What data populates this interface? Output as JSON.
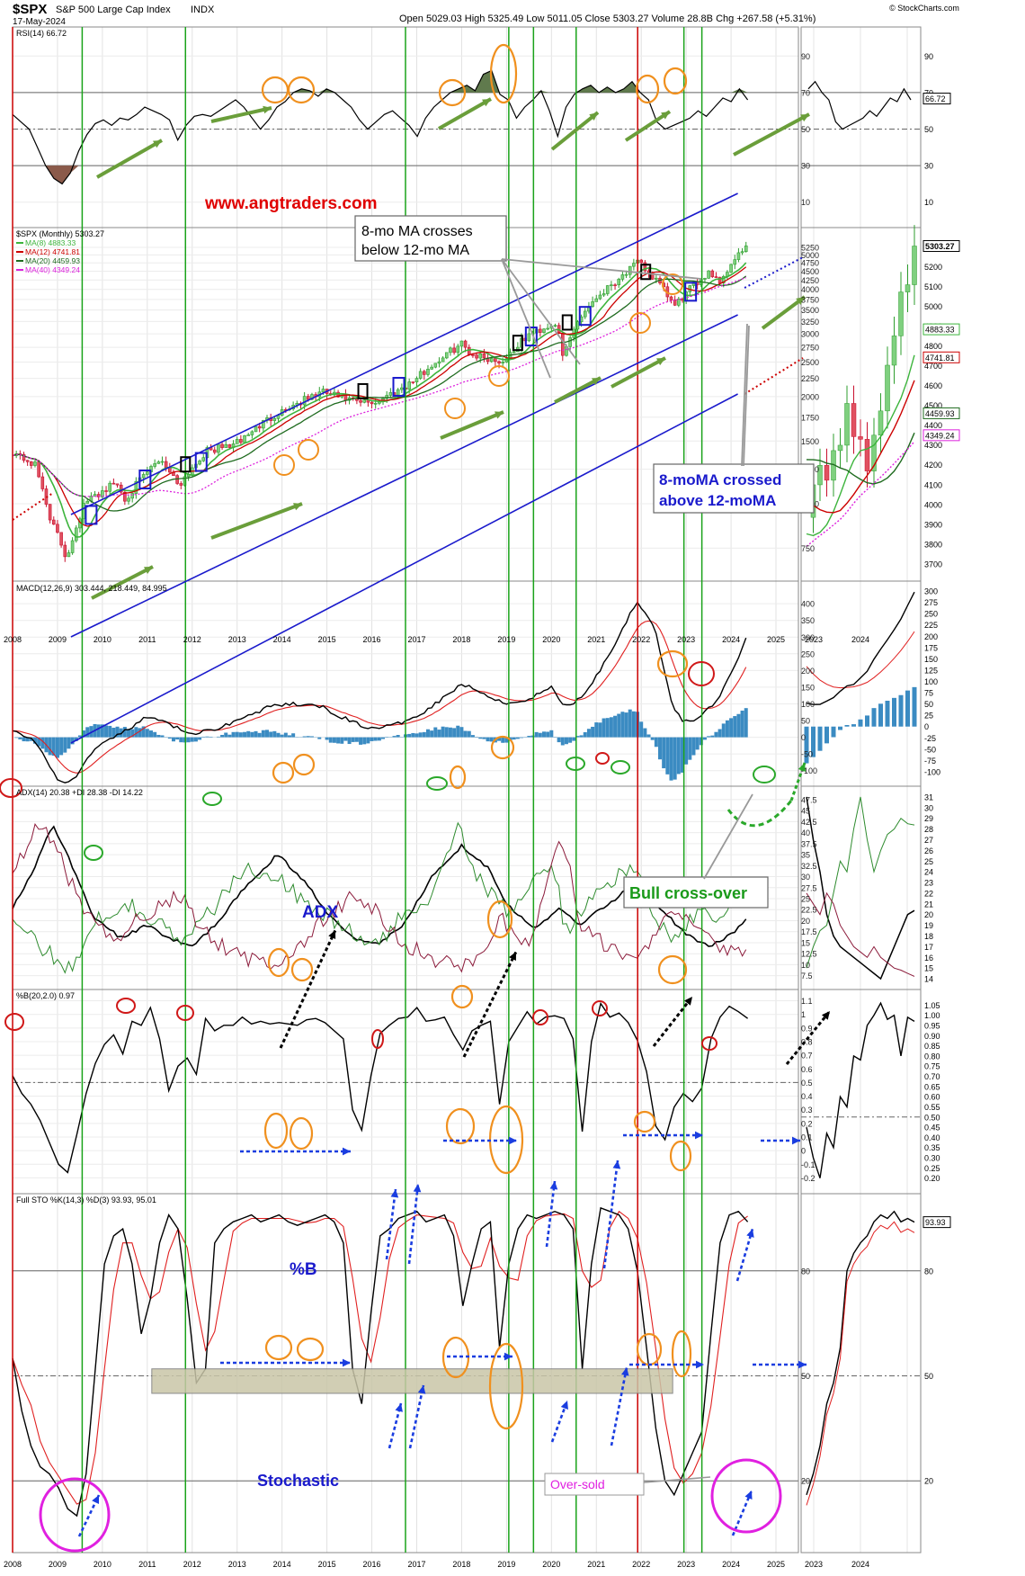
{
  "header": {
    "symbol": "$SPX",
    "name": "S&P 500 Large Cap Index",
    "exchange": "INDX",
    "date": "17-May-2024",
    "ohlc": "Open 5029.03  High 5325.49  Low 5011.05  Close 5303.27  Volume 28.8B  Chg +267.58 (+5.31%)",
    "credit": "© StockCharts.com"
  },
  "annotations": {
    "website": "www.angtraders.com",
    "ma_cross_below": "8-mo MA crosses below 12-mo MA",
    "ma_cross_above": "8-moMA crossed above 12-moMA",
    "bull_cross": "Bull cross-over",
    "adx_title": "ADX",
    "pctb_title": "%B",
    "stoch_title": "Stochastic",
    "oversold": "Over-sold"
  },
  "colors": {
    "price_up": "#2e9e2e",
    "price_down": "#c8102e",
    "green_line": "#3cb43c",
    "red_line": "#cc0000",
    "blue_channel": "#1a1acc",
    "orange_marker": "#f0901e",
    "arrow_green": "#6a9e3a",
    "macd_hist": "#3b8bc2"
  },
  "chart_data": [
    {
      "panel": "rsi",
      "type": "line",
      "label": "RSI(14) 66.72",
      "ylim": [
        0,
        100
      ],
      "ticks": [
        10,
        30,
        50,
        70,
        90
      ],
      "ref_lines": [
        30,
        50,
        70
      ],
      "x_start": 2008.0,
      "x_end": 2024.37,
      "values": [
        58,
        54,
        50,
        40,
        30,
        23,
        20,
        26,
        38,
        47,
        53,
        55,
        52,
        56,
        55,
        58,
        62,
        60,
        58,
        55,
        44,
        52,
        57,
        58,
        57,
        60,
        63,
        66,
        62,
        56,
        50,
        55,
        62,
        65,
        70,
        72,
        71,
        68,
        72,
        70,
        66,
        62,
        55,
        50,
        54,
        58,
        60,
        56,
        52,
        46,
        56,
        62,
        66,
        70,
        72,
        74,
        71,
        80,
        82,
        69,
        66,
        56,
        62,
        66,
        71,
        60,
        46,
        62,
        69,
        72,
        74,
        70,
        73,
        70,
        72,
        76,
        70,
        66,
        54,
        50,
        52,
        54,
        56,
        60,
        57,
        62,
        67,
        65,
        72,
        66
      ],
      "latest": 66.72
    },
    {
      "panel": "price",
      "type": "candlestick",
      "label": "$SPX (Monthly) 5303.27",
      "scale": "log",
      "ylim": [
        650,
        5500
      ],
      "ticks": [
        750,
        1000,
        1250,
        1500,
        1750,
        2000,
        2250,
        2500,
        2750,
        3000,
        3250,
        3500,
        3750,
        4000,
        4250,
        4500,
        4750,
        5000,
        5250
      ],
      "x_ticks": [
        "2008",
        "2009",
        "2010",
        "2011",
        "2012",
        "2013",
        "2014",
        "2015",
        "2016",
        "2017",
        "2018",
        "2019",
        "2020",
        "2021",
        "2022",
        "2023",
        "2024",
        "2025"
      ],
      "close_anchors": [
        [
          2008.0,
          1400
        ],
        [
          2008.5,
          1280
        ],
        [
          2008.85,
          900
        ],
        [
          2009.2,
          700
        ],
        [
          2009.6,
          1000
        ],
        [
          2010.3,
          1150
        ],
        [
          2010.5,
          1030
        ],
        [
          2011.3,
          1340
        ],
        [
          2011.7,
          1130
        ],
        [
          2012.3,
          1400
        ],
        [
          2013.0,
          1480
        ],
        [
          2013.9,
          1800
        ],
        [
          2014.9,
          2060
        ],
        [
          2015.7,
          1920
        ],
        [
          2016.1,
          1930
        ],
        [
          2016.9,
          2200
        ],
        [
          2018.0,
          2820
        ],
        [
          2018.2,
          2640
        ],
        [
          2018.9,
          2500
        ],
        [
          2019.5,
          2980
        ],
        [
          2020.1,
          3230
        ],
        [
          2020.25,
          2580
        ],
        [
          2020.6,
          3300
        ],
        [
          2020.95,
          3750
        ],
        [
          2021.95,
          4760
        ],
        [
          2022.4,
          4130
        ],
        [
          2022.75,
          3580
        ],
        [
          2022.95,
          3840
        ],
        [
          2023.5,
          4500
        ],
        [
          2023.8,
          4190
        ],
        [
          2024.0,
          4770
        ],
        [
          2024.37,
          5303
        ]
      ],
      "series": [
        {
          "name": "MA(8) 4883.33",
          "color": "#3cb43c"
        },
        {
          "name": "MA(12) 4741.81",
          "color": "#cc0000"
        },
        {
          "name": "MA(20) 4459.93",
          "color": "#1f6b1f"
        },
        {
          "name": "MA(40) 4349.24",
          "color": "#dd22dd"
        }
      ],
      "zoom_labels": [
        5303.27,
        4883.33,
        4741.81,
        4459.93,
        4349.24
      ],
      "zoom_ticks": [
        3700,
        3800,
        3900,
        4000,
        4100,
        4200,
        4300,
        4400,
        4500,
        4600,
        4700,
        4800,
        4900,
        5000,
        5100,
        5200,
        5300
      ]
    },
    {
      "panel": "macd",
      "type": "line",
      "label": "MACD(12,26,9) 303.444, 218.449, 84.995",
      "ylim": [
        -125,
        430
      ],
      "ticks": [
        -100,
        -50,
        0,
        50,
        100,
        150,
        200,
        250,
        300,
        350,
        400
      ],
      "anchors": [
        [
          2008.0,
          20
        ],
        [
          2008.5,
          -10
        ],
        [
          2009.0,
          -130
        ],
        [
          2009.3,
          -135
        ],
        [
          2009.8,
          -40
        ],
        [
          2010.5,
          20
        ],
        [
          2011.0,
          60
        ],
        [
          2011.5,
          40
        ],
        [
          2011.9,
          10
        ],
        [
          2012.4,
          20
        ],
        [
          2013.0,
          50
        ],
        [
          2013.7,
          90
        ],
        [
          2014.3,
          100
        ],
        [
          2014.9,
          90
        ],
        [
          2015.5,
          50
        ],
        [
          2016.0,
          25
        ],
        [
          2016.6,
          40
        ],
        [
          2017.2,
          80
        ],
        [
          2018.0,
          160
        ],
        [
          2018.6,
          125
        ],
        [
          2019.0,
          100
        ],
        [
          2019.5,
          115
        ],
        [
          2020.0,
          150
        ],
        [
          2020.3,
          90
        ],
        [
          2020.7,
          120
        ],
        [
          2021.3,
          250
        ],
        [
          2021.9,
          410
        ],
        [
          2022.3,
          330
        ],
        [
          2022.7,
          90
        ],
        [
          2022.95,
          45
        ],
        [
          2023.3,
          60
        ],
        [
          2023.7,
          110
        ],
        [
          2024.0,
          190
        ],
        [
          2024.37,
          303
        ]
      ],
      "latest": [
        303.444,
        218.449,
        84.995
      ],
      "zoom_ticks": [
        -100,
        -75,
        -50,
        -25,
        0,
        25,
        50,
        75,
        100,
        125,
        150,
        175,
        200,
        225,
        250,
        275,
        300
      ]
    },
    {
      "panel": "adx",
      "type": "line",
      "label": "ADX(14) 20.38  +DI 28.38  -DI 14.22",
      "ylim": [
        6,
        48.5
      ],
      "ticks": [
        7.5,
        10.0,
        12.5,
        15.0,
        17.5,
        20.0,
        22.5,
        25.0,
        27.5,
        30.0,
        32.5,
        35.0,
        37.5,
        40.0,
        42.5,
        45.0,
        47.5
      ],
      "adx_anchors": [
        [
          2008.0,
          23
        ],
        [
          2008.4,
          30
        ],
        [
          2008.9,
          42
        ],
        [
          2009.3,
          33
        ],
        [
          2009.8,
          21
        ],
        [
          2010.4,
          16
        ],
        [
          2011.0,
          19
        ],
        [
          2011.5,
          16
        ],
        [
          2012.0,
          14
        ],
        [
          2012.5,
          19
        ],
        [
          2013.3,
          29
        ],
        [
          2013.9,
          35
        ],
        [
          2014.5,
          29
        ],
        [
          2015.0,
          22
        ],
        [
          2015.6,
          16
        ],
        [
          2016.2,
          15
        ],
        [
          2016.7,
          19
        ],
        [
          2017.4,
          31
        ],
        [
          2018.0,
          37
        ],
        [
          2018.6,
          32
        ],
        [
          2019.0,
          24
        ],
        [
          2019.6,
          18
        ],
        [
          2020.2,
          23
        ],
        [
          2020.6,
          19
        ],
        [
          2021.3,
          24
        ],
        [
          2021.9,
          29
        ],
        [
          2022.3,
          24
        ],
        [
          2022.7,
          20
        ],
        [
          2023.0,
          17
        ],
        [
          2023.5,
          14
        ],
        [
          2024.0,
          17
        ],
        [
          2024.37,
          20.38
        ]
      ],
      "plus_anchors": [
        [
          2008.0,
          20
        ],
        [
          2008.6,
          14
        ],
        [
          2009.3,
          9
        ],
        [
          2009.8,
          20
        ],
        [
          2010.6,
          24
        ],
        [
          2011.3,
          19
        ],
        [
          2011.8,
          15
        ],
        [
          2012.4,
          22
        ],
        [
          2013.2,
          32
        ],
        [
          2013.8,
          31
        ],
        [
          2014.3,
          26
        ],
        [
          2015.0,
          21
        ],
        [
          2015.6,
          17
        ],
        [
          2016.1,
          14
        ],
        [
          2016.6,
          20
        ],
        [
          2017.3,
          26
        ],
        [
          2017.9,
          42
        ],
        [
          2018.4,
          29
        ],
        [
          2019.0,
          22
        ],
        [
          2019.5,
          28
        ],
        [
          2020.1,
          31
        ],
        [
          2020.3,
          17
        ],
        [
          2020.8,
          24
        ],
        [
          2021.4,
          30
        ],
        [
          2021.9,
          31
        ],
        [
          2022.3,
          20
        ],
        [
          2022.8,
          16
        ],
        [
          2023.3,
          22
        ],
        [
          2023.8,
          20
        ],
        [
          2024.1,
          25
        ],
        [
          2024.37,
          28.38
        ]
      ],
      "minus_anchors": [
        [
          2008.0,
          30
        ],
        [
          2008.6,
          42
        ],
        [
          2009.0,
          36
        ],
        [
          2009.6,
          21
        ],
        [
          2010.3,
          16
        ],
        [
          2011.0,
          22
        ],
        [
          2011.7,
          26
        ],
        [
          2012.3,
          17
        ],
        [
          2013.0,
          12
        ],
        [
          2013.8,
          10
        ],
        [
          2014.3,
          13
        ],
        [
          2014.9,
          20
        ],
        [
          2015.5,
          25
        ],
        [
          2016.1,
          22
        ],
        [
          2016.8,
          14
        ],
        [
          2017.5,
          11
        ],
        [
          2018.2,
          10
        ],
        [
          2018.9,
          20
        ],
        [
          2019.5,
          14
        ],
        [
          2020.2,
          40
        ],
        [
          2020.7,
          18
        ],
        [
          2021.4,
          13
        ],
        [
          2021.9,
          10
        ],
        [
          2022.4,
          20
        ],
        [
          2022.9,
          21
        ],
        [
          2023.4,
          17
        ],
        [
          2023.9,
          12
        ],
        [
          2024.37,
          14.22
        ]
      ],
      "zoom_ticks": [
        14,
        15,
        16,
        17,
        18,
        19,
        20,
        21,
        22,
        23,
        24,
        25,
        26,
        27,
        28,
        29,
        30,
        31
      ]
    },
    {
      "panel": "pctb",
      "type": "line",
      "label": "%B(20,2.0) 0.97",
      "ylim": [
        -0.25,
        1.13
      ],
      "ticks": [
        -0.2,
        -0.1,
        0.0,
        0.1,
        0.2,
        0.3,
        0.4,
        0.5,
        0.6,
        0.7,
        0.8,
        0.9,
        1.0,
        1.1
      ],
      "ref_lines": [
        0.5
      ],
      "values": [
        0.55,
        0.42,
        0.34,
        0.22,
        0.06,
        -0.1,
        -0.16,
        0.12,
        0.42,
        0.64,
        0.78,
        0.85,
        0.71,
        0.95,
        0.92,
        1.05,
        0.82,
        0.44,
        0.62,
        0.68,
        0.56,
        0.97,
        0.88,
        0.92,
        0.92,
        0.98,
        0.93,
        0.95,
        0.93,
        0.94,
        0.93,
        0.92,
        0.96,
        0.97,
        0.94,
        0.88,
        0.82,
        0.3,
        0.15,
        0.55,
        0.86,
        0.92,
        0.97,
        0.98,
        1.05,
        0.95,
        0.96,
        0.98,
        0.85,
        0.74,
        0.88,
        0.92,
        0.95,
        0.34,
        0.8,
        0.91,
        1.02,
        0.93,
        0.98,
        0.99,
        0.97,
        0.82,
        0.14,
        0.8,
        1.08,
        0.98,
        1.01,
        0.94,
        0.81,
        0.58,
        0.18,
        0.08,
        0.32,
        0.42,
        0.36,
        0.46,
        0.82,
        0.98,
        1.06,
        1.02,
        0.97
      ],
      "latest": 0.97,
      "zoom_ticks": [
        0.2,
        0.25,
        0.3,
        0.35,
        0.4,
        0.45,
        0.5,
        0.55,
        0.6,
        0.65,
        0.7,
        0.75,
        0.8,
        0.85,
        0.9,
        0.95,
        1.0,
        1.05
      ]
    },
    {
      "panel": "stoch",
      "type": "line",
      "label": "Full STO %K(14,3) %D(3) 93.93, 95.01",
      "ylim": [
        0,
        100
      ],
      "ticks": [
        20,
        50,
        80
      ],
      "ref_lines": [
        20,
        50,
        80
      ],
      "values": [
        55,
        40,
        30,
        24,
        22,
        18,
        12,
        10,
        22,
        52,
        82,
        90,
        92,
        82,
        62,
        72,
        88,
        96,
        92,
        72,
        48,
        52,
        88,
        92,
        94,
        95,
        96,
        94,
        95,
        96,
        94,
        93,
        94,
        95,
        96,
        94,
        88,
        52,
        42,
        68,
        90,
        92,
        95,
        96,
        97,
        94,
        95,
        96,
        90,
        70,
        82,
        92,
        94,
        58,
        82,
        92,
        96,
        95,
        96,
        97,
        96,
        92,
        52,
        82,
        98,
        97,
        96,
        92,
        80,
        58,
        35,
        20,
        16,
        22,
        28,
        34,
        62,
        88,
        96,
        97,
        94
      ],
      "latest": [
        93.93,
        95.01
      ]
    }
  ]
}
